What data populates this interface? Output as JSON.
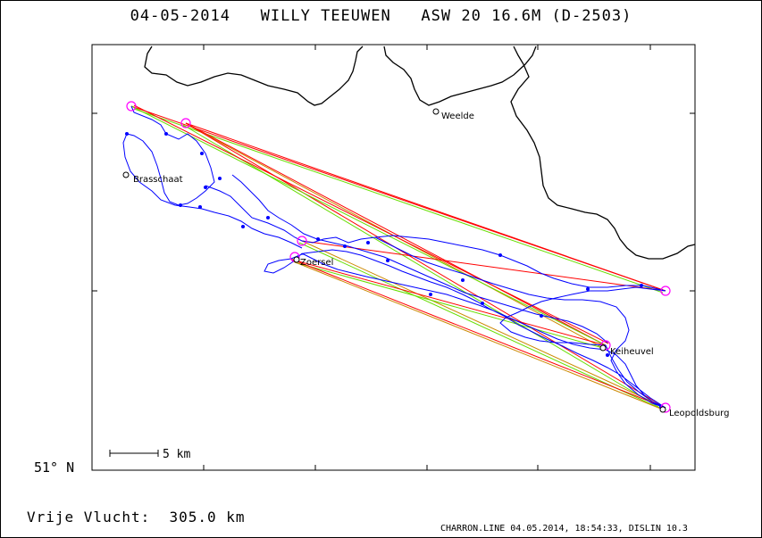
{
  "header": {
    "title": "04-05-2014   WILLY TEEUWEN   ASW 20 16.6M (D-2503)"
  },
  "axis": {
    "lat_label": "51° N"
  },
  "places": [
    {
      "name": "Weelde"
    },
    {
      "name": "Brasschaat"
    },
    {
      "name": "Zoersel"
    },
    {
      "name": "Keiheuvel"
    },
    {
      "name": "Leopoldsburg"
    }
  ],
  "scale": {
    "label": "5 km"
  },
  "summary": {
    "distance_text": "Vrije Vlucht:  305.0 km"
  },
  "footer": {
    "text": "CHARRON.LINE 04.05.2014, 18:54:33, DISLIN 10.3"
  },
  "colors": {
    "track": "#0000ff",
    "turnpoint": "#ff00ff",
    "leg_red": "#ff0000",
    "leg_green": "#66dd00",
    "leg_orange": "#cc8800",
    "border": "#000000"
  }
}
